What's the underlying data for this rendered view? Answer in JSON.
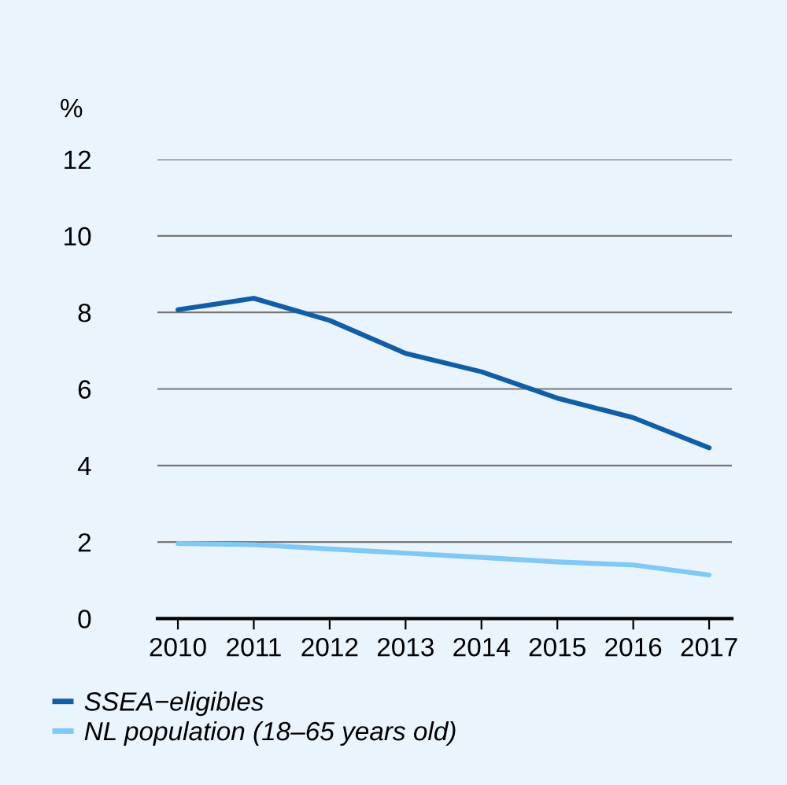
{
  "chart_data": {
    "type": "line",
    "ylabel": "%",
    "categories": [
      "2010",
      "2011",
      "2012",
      "2013",
      "2014",
      "2015",
      "2016",
      "2017"
    ],
    "series": [
      {
        "name": "SSEA−eligibles",
        "color": "#115ea6",
        "values": [
          8.07,
          8.37,
          7.79,
          6.93,
          6.45,
          5.76,
          5.25,
          4.46
        ]
      },
      {
        "name": "NL population (18–65 years old)",
        "color": "#80c8f5",
        "values": [
          1.96,
          1.93,
          1.82,
          1.71,
          1.6,
          1.48,
          1.4,
          1.14
        ]
      }
    ],
    "ylim": [
      0,
      12
    ],
    "yticks": [
      0,
      2,
      4,
      6,
      8,
      10,
      12
    ],
    "grid": "y",
    "legend": "bottom left",
    "marker": "none",
    "line_style": "solid"
  }
}
